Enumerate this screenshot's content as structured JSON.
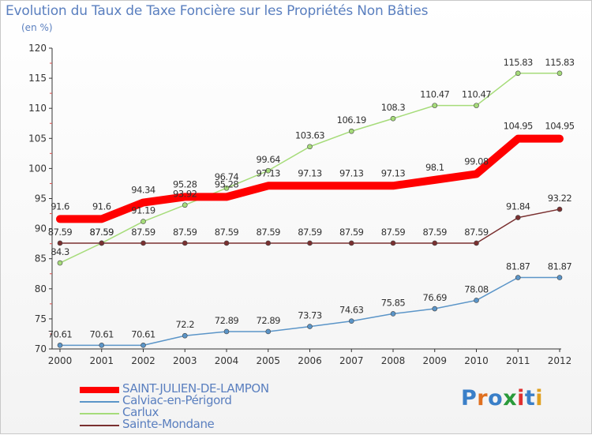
{
  "title": "Evolution du Taux de Taxe Foncière sur les Propriétés Non Bâties",
  "subtitle": "(en %)",
  "logo": {
    "text": "Proxiti",
    "colors": [
      "#3a7fc8",
      "#e07020",
      "#3a7fc8",
      "#2a9a3a",
      "#e03030",
      "#3a7fc8",
      "#e0a020"
    ]
  },
  "chart_data": {
    "type": "line",
    "title": "Evolution du Taux de Taxe Foncière sur les Propriétés Non Bâties",
    "ylabel": "(en %)",
    "xlabel": "",
    "x": [
      "2000",
      "2001",
      "2002",
      "2003",
      "2004",
      "2005",
      "2006",
      "2007",
      "2008",
      "2009",
      "2010",
      "2011",
      "2012"
    ],
    "ylim": [
      70,
      120
    ],
    "yticks": [
      70,
      75,
      80,
      85,
      90,
      95,
      100,
      105,
      110,
      115,
      120
    ],
    "grid": false,
    "legend_position": "bottom-left",
    "series": [
      {
        "name": "SAINT-JULIEN-DE-LAMPON",
        "color": "#ff0000",
        "values": [
          91.6,
          91.6,
          94.34,
          95.28,
          95.28,
          97.13,
          97.13,
          97.13,
          97.13,
          98.1,
          99.08,
          104.95,
          104.95
        ],
        "labels": [
          "91.6",
          "91.6",
          "94.34",
          "95.28",
          "95.28",
          "97.13",
          "97.13",
          "97.13",
          "97.13",
          "98.1",
          "99.08",
          "104.95",
          "104.95"
        ]
      },
      {
        "name": "Calviac-en-Périgord",
        "color": "#5b95c8",
        "values": [
          70.61,
          70.61,
          70.61,
          72.2,
          72.89,
          72.89,
          73.73,
          74.63,
          75.85,
          76.69,
          78.08,
          81.87,
          81.87
        ],
        "labels": [
          "70.61",
          "70.61",
          "70.61",
          "72.2",
          "72.89",
          "72.89",
          "73.73",
          "74.63",
          "75.85",
          "76.69",
          "78.08",
          "81.87",
          "81.87"
        ]
      },
      {
        "name": "Carlux",
        "color": "#a6dc7a",
        "values": [
          84.3,
          87.59,
          91.19,
          93.92,
          96.74,
          99.64,
          103.63,
          106.19,
          108.3,
          110.47,
          110.47,
          115.83,
          115.83
        ],
        "labels": [
          "84.3",
          "87.59",
          "91.19",
          "93.92",
          "96.74",
          "99.64",
          "103.63",
          "106.19",
          "108.3",
          "110.47",
          "110.47",
          "115.83",
          "115.83"
        ]
      },
      {
        "name": "Sainte-Mondane",
        "color": "#7a3030",
        "values": [
          87.59,
          87.59,
          87.59,
          87.59,
          87.59,
          87.59,
          87.59,
          87.59,
          87.59,
          87.59,
          87.59,
          91.84,
          93.22
        ],
        "labels": [
          "87.59",
          "87.59",
          "87.59",
          "87.59",
          "87.59",
          "87.59",
          "87.59",
          "87.59",
          "87.59",
          "87.59",
          "87.59",
          "91.84",
          "93.22"
        ]
      }
    ]
  }
}
